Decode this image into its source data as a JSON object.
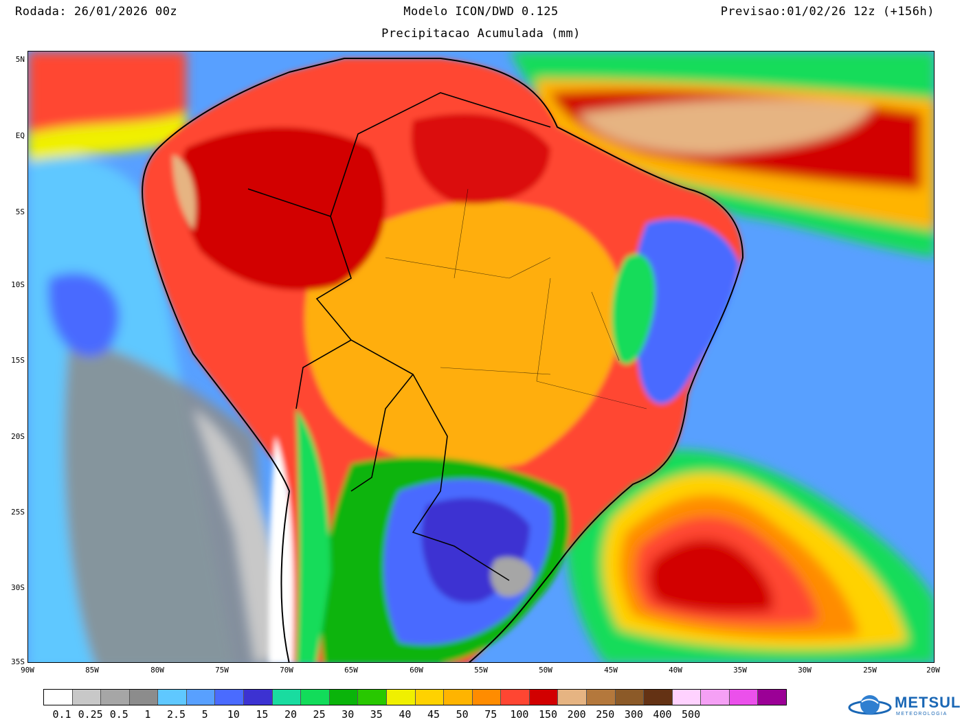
{
  "header": {
    "run": "Rodada: 26/01/2026 00z",
    "model": "Modelo ICON/DWD 0.125",
    "valid": "Previsao:01/02/26 12z (+156h)",
    "variable": "Precipitacao Acumulada (mm)"
  },
  "map": {
    "lat_labels": [
      "5N",
      "EQ",
      "5S",
      "10S",
      "15S",
      "20S",
      "25S",
      "30S",
      "35S"
    ],
    "lon_labels": [
      "90W",
      "85W",
      "80W",
      "75W",
      "70W",
      "65W",
      "60W",
      "55W",
      "50W",
      "45W",
      "40W",
      "35W",
      "30W",
      "25W",
      "20W"
    ]
  },
  "colorbar": {
    "colors": [
      "#ffffff",
      "#c8c8c8",
      "#a6a6a6",
      "#8c8c8c",
      "#5fc8ff",
      "#58a0ff",
      "#4a6bff",
      "#3c32d2",
      "#19dca0",
      "#12dc5a",
      "#0ab40a",
      "#28c800",
      "#f0f000",
      "#ffd200",
      "#ffb400",
      "#ff8c00",
      "#ff4632",
      "#d20000",
      "#e6b482",
      "#b4783c",
      "#8c5a28",
      "#643214",
      "#ffd2ff",
      "#f5a0f5",
      "#eb50eb",
      "#9b0096"
    ],
    "labels": [
      "0.1",
      "0.25",
      "0.5",
      "1",
      "2.5",
      "5",
      "10",
      "15",
      "20",
      "25",
      "30",
      "35",
      "40",
      "45",
      "50",
      "75",
      "100",
      "150",
      "200",
      "250",
      "300",
      "400",
      "500"
    ]
  },
  "logo": {
    "name": "METSUL",
    "sub": "METEOROLOGIA"
  }
}
